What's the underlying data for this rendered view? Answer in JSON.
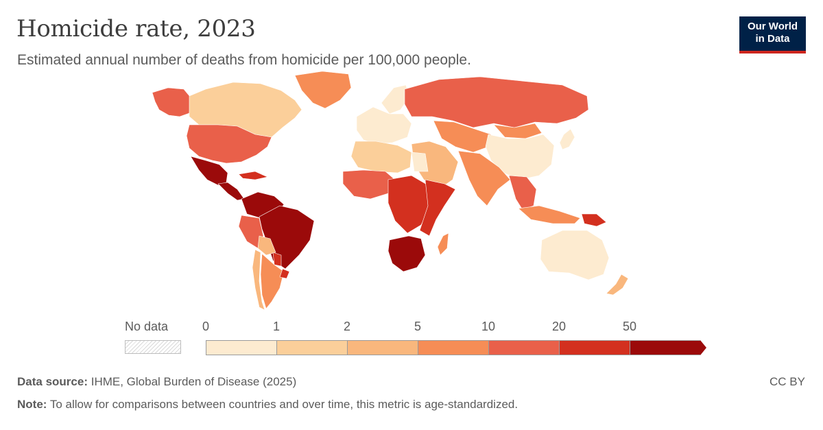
{
  "header": {
    "title": "Homicide rate, 2023",
    "subtitle": "Estimated annual number of deaths from homicide per 100,000 people."
  },
  "logo": {
    "line1": "Our World",
    "line2": "in Data",
    "background": "#002147",
    "accent": "#ce261e"
  },
  "legend": {
    "no_data_label": "No data",
    "ticks": [
      "0",
      "1",
      "2",
      "5",
      "10",
      "20",
      "50"
    ],
    "bins": [
      {
        "from": "0",
        "to": "1",
        "color": "#fdebd0"
      },
      {
        "from": "1",
        "to": "2",
        "color": "#fbcf9a"
      },
      {
        "from": "2",
        "to": "5",
        "color": "#f9b77d"
      },
      {
        "from": "5",
        "to": "10",
        "color": "#f68d56"
      },
      {
        "from": "10",
        "to": "20",
        "color": "#e9604a"
      },
      {
        "from": "20",
        "to": "50",
        "color": "#d3301f"
      },
      {
        "from": "50",
        "to": "",
        "color": "#9b0a0a"
      }
    ]
  },
  "map": {
    "regions": [
      {
        "id": "canada",
        "bin": 1
      },
      {
        "id": "alaska",
        "bin": 4
      },
      {
        "id": "greenland",
        "bin": 3
      },
      {
        "id": "usa",
        "bin": 4
      },
      {
        "id": "mexico",
        "bin": 6
      },
      {
        "id": "central-america",
        "bin": 6
      },
      {
        "id": "caribbean",
        "bin": 5
      },
      {
        "id": "colombia-venezuela",
        "bin": 6
      },
      {
        "id": "brazil",
        "bin": 6
      },
      {
        "id": "peru",
        "bin": 4
      },
      {
        "id": "bolivia",
        "bin": 2
      },
      {
        "id": "paraguay",
        "bin": 5
      },
      {
        "id": "chile",
        "bin": 2
      },
      {
        "id": "argentina",
        "bin": 3
      },
      {
        "id": "uruguay",
        "bin": 5
      },
      {
        "id": "europe",
        "bin": 0
      },
      {
        "id": "scandinavia",
        "bin": 0
      },
      {
        "id": "russia",
        "bin": 4
      },
      {
        "id": "central-asia",
        "bin": 3
      },
      {
        "id": "middle-east",
        "bin": 2
      },
      {
        "id": "north-africa",
        "bin": 1
      },
      {
        "id": "egypt",
        "bin": 0
      },
      {
        "id": "west-africa",
        "bin": 4
      },
      {
        "id": "central-africa",
        "bin": 5
      },
      {
        "id": "east-africa",
        "bin": 5
      },
      {
        "id": "southern-africa",
        "bin": 6
      },
      {
        "id": "madagascar",
        "bin": 3
      },
      {
        "id": "south-asia",
        "bin": 3
      },
      {
        "id": "china",
        "bin": 0
      },
      {
        "id": "mongolia",
        "bin": 3
      },
      {
        "id": "southeast-asia",
        "bin": 4
      },
      {
        "id": "indonesia",
        "bin": 3
      },
      {
        "id": "japan",
        "bin": 0
      },
      {
        "id": "papua",
        "bin": 5
      },
      {
        "id": "australia",
        "bin": 0
      },
      {
        "id": "new-zealand",
        "bin": 2
      }
    ]
  },
  "footer": {
    "source_label": "Data source:",
    "source_text": "IHME, Global Burden of Disease (2025)",
    "note_label": "Note:",
    "note_text": "To allow for comparisons between countries and over time, this metric is age-standardized.",
    "license": "CC BY"
  }
}
